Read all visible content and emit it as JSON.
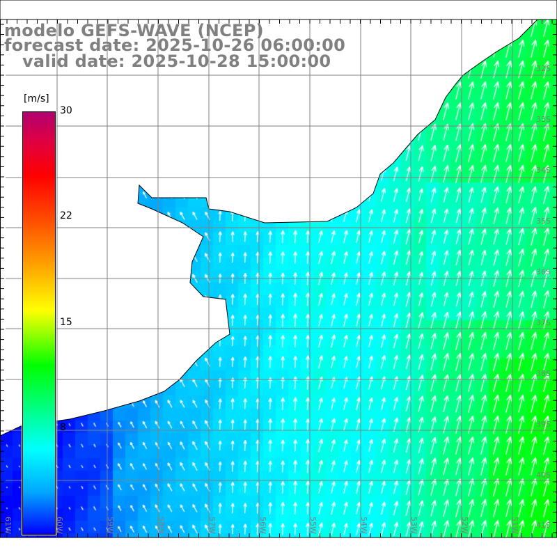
{
  "title": {
    "model": "modelo GEFS-WAVE (NCEP)",
    "forecast": "forecast date: 2025-10-26 06:00:00",
    "valid": "   valid date: 2025-10-28 15:00:00"
  },
  "colorbar": {
    "unit": "[m/s]",
    "labels": [
      "30",
      "22",
      "15",
      "8"
    ],
    "range": [
      0,
      30
    ]
  },
  "axes": {
    "lon_labels": [
      "61W",
      "60W",
      "59W",
      "58W",
      "57W",
      "56W",
      "55W",
      "54W",
      "53W",
      "52W",
      "51W"
    ],
    "lat_labels": [
      "32S",
      "33S",
      "34S",
      "35S",
      "36S",
      "37S",
      "38S",
      "39S",
      "40S",
      "41S"
    ]
  },
  "colors": {
    "grid": "#808080",
    "land": "#ffffff",
    "coast": "#000000",
    "arrow": "#ffffff"
  }
}
